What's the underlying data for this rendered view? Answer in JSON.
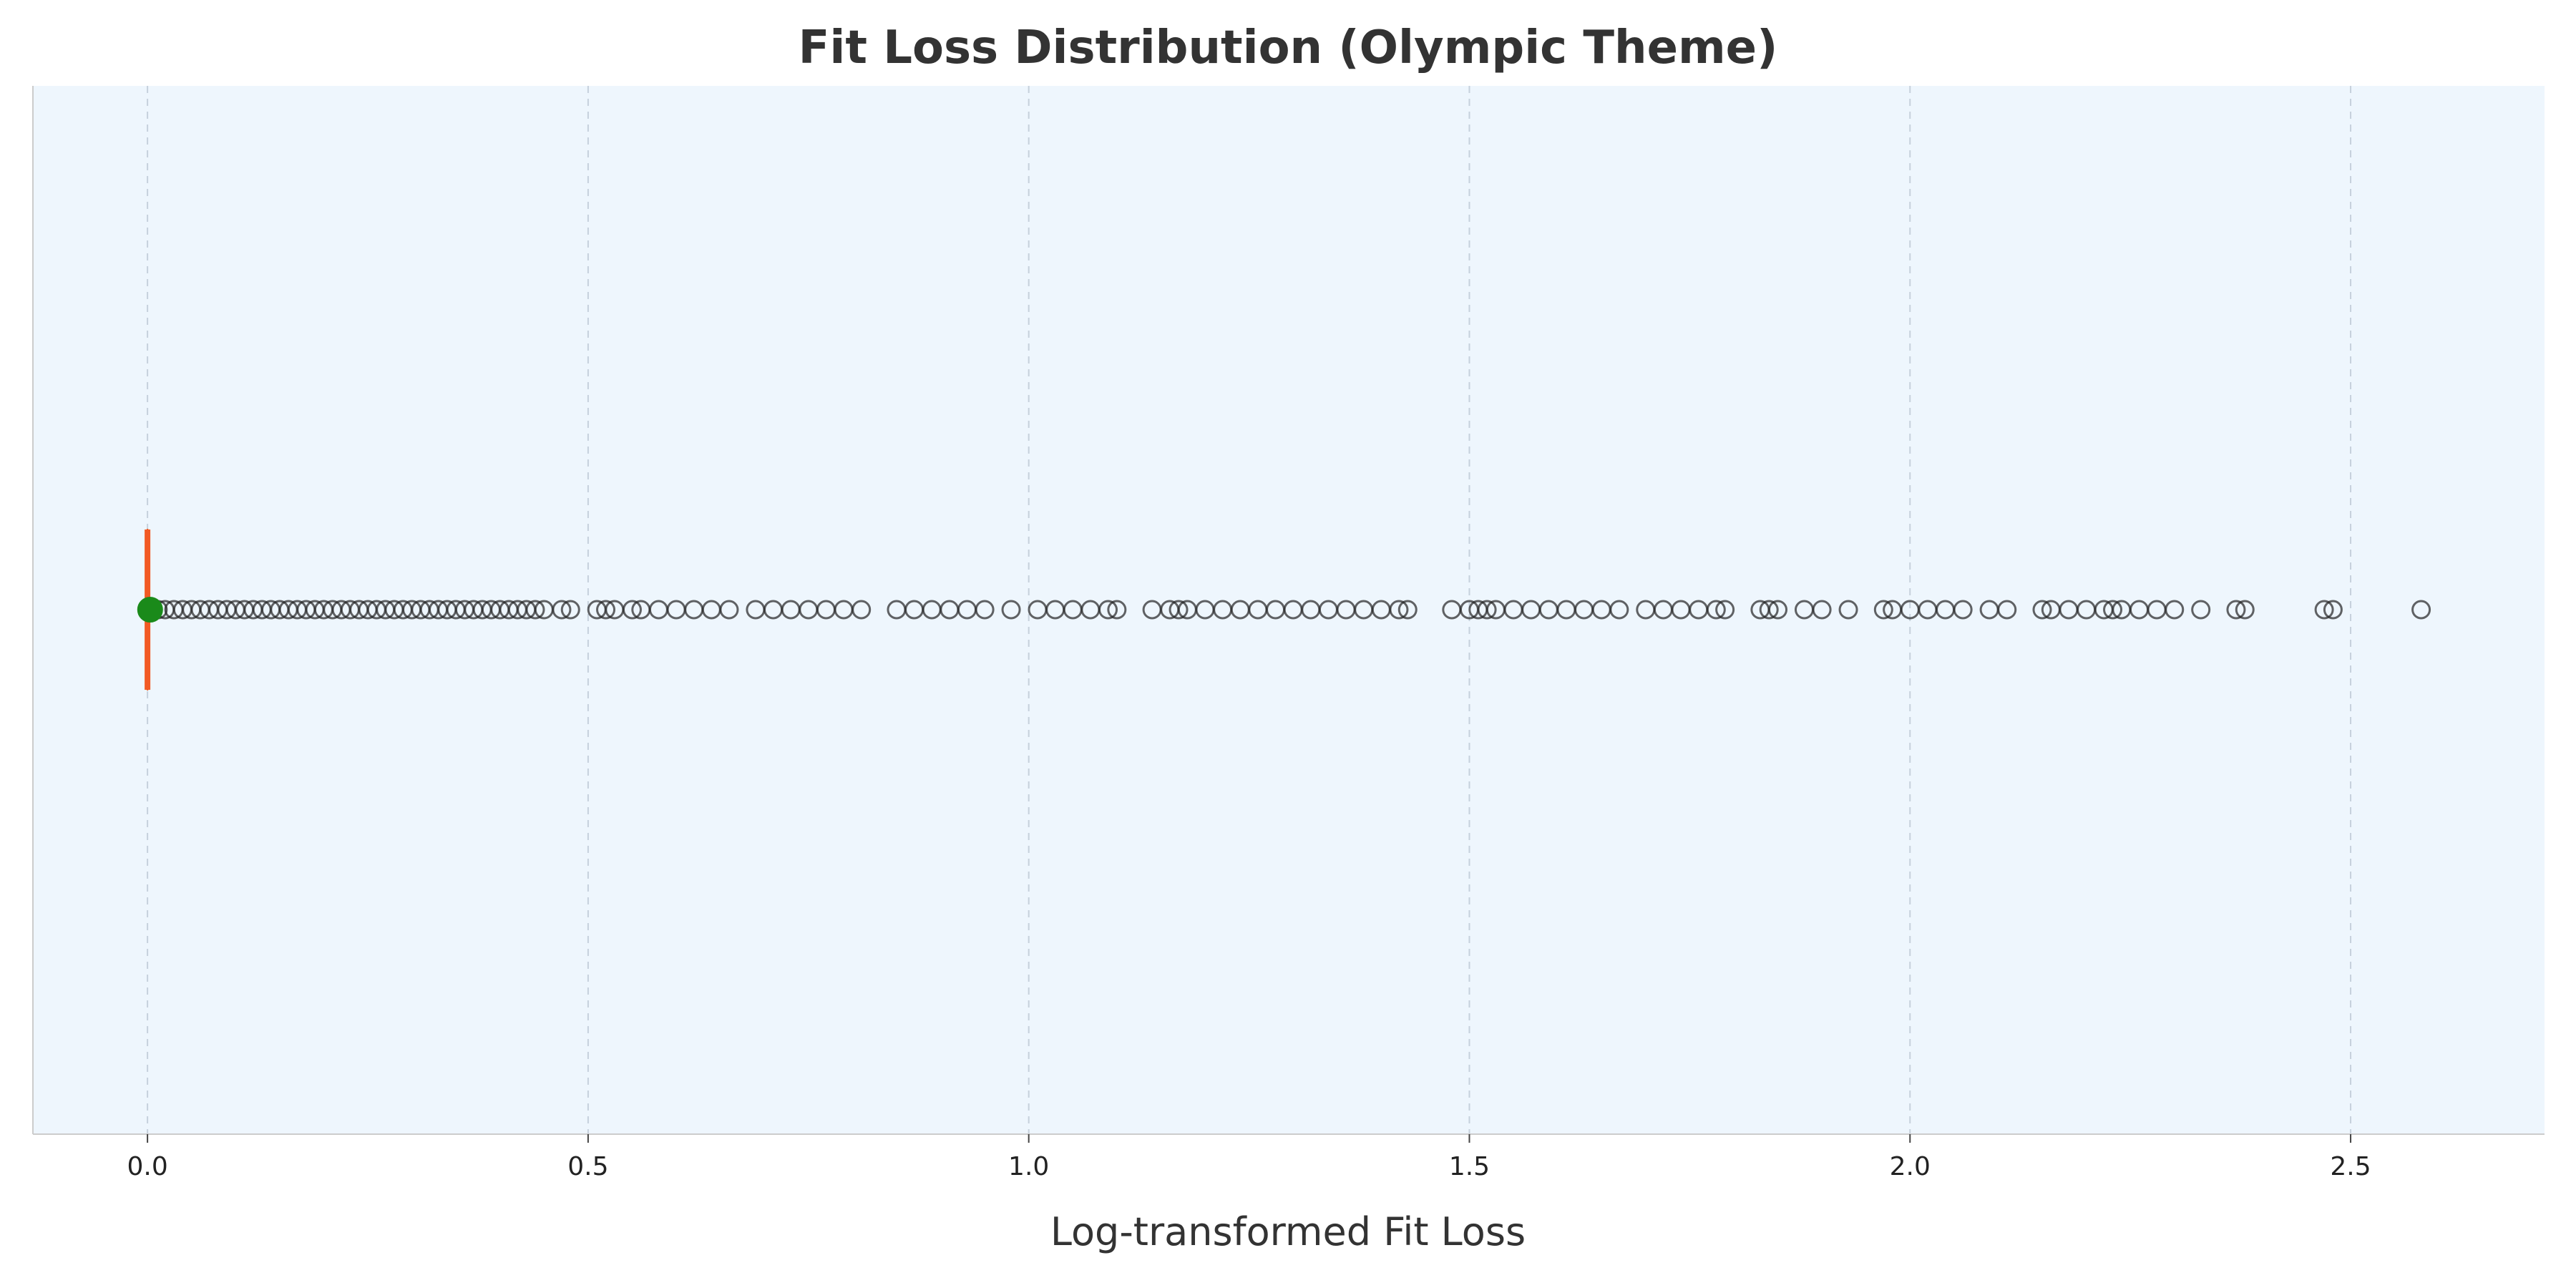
{
  "chart_data": {
    "type": "box",
    "title": "Fit Loss Distribution (Olympic Theme)",
    "xlabel": "Log-transformed Fit Loss",
    "ylabel": "",
    "xlim": [
      -0.13,
      2.72
    ],
    "x_ticks": [
      0.0,
      0.5,
      1.0,
      1.5,
      2.0,
      2.5
    ],
    "x_tick_labels": [
      "0.0",
      "0.5",
      "1.0",
      "1.5",
      "2.0",
      "2.5"
    ],
    "grid": {
      "x": true,
      "y": false,
      "style": "dashed"
    },
    "box": {
      "min": 0.0,
      "q1": 0.0,
      "median": 0.0,
      "q3": 0.0,
      "max": 0.0,
      "mean": 0.003
    },
    "outliers": [
      0.005,
      0.012,
      0.02,
      0.03,
      0.04,
      0.05,
      0.06,
      0.07,
      0.08,
      0.09,
      0.1,
      0.11,
      0.12,
      0.13,
      0.14,
      0.15,
      0.16,
      0.17,
      0.18,
      0.19,
      0.2,
      0.21,
      0.22,
      0.23,
      0.24,
      0.25,
      0.26,
      0.27,
      0.28,
      0.29,
      0.3,
      0.31,
      0.32,
      0.33,
      0.34,
      0.35,
      0.36,
      0.37,
      0.38,
      0.39,
      0.4,
      0.41,
      0.42,
      0.43,
      0.44,
      0.45,
      0.47,
      0.48,
      0.51,
      0.52,
      0.53,
      0.55,
      0.56,
      0.58,
      0.6,
      0.62,
      0.64,
      0.66,
      0.69,
      0.71,
      0.73,
      0.75,
      0.77,
      0.79,
      0.81,
      0.85,
      0.87,
      0.89,
      0.91,
      0.93,
      0.95,
      0.98,
      1.01,
      1.03,
      1.05,
      1.07,
      1.09,
      1.1,
      1.14,
      1.16,
      1.17,
      1.18,
      1.2,
      1.22,
      1.24,
      1.26,
      1.28,
      1.3,
      1.32,
      1.34,
      1.36,
      1.38,
      1.4,
      1.42,
      1.43,
      1.48,
      1.5,
      1.51,
      1.52,
      1.53,
      1.55,
      1.57,
      1.59,
      1.61,
      1.63,
      1.65,
      1.67,
      1.7,
      1.72,
      1.74,
      1.76,
      1.78,
      1.79,
      1.83,
      1.84,
      1.85,
      1.88,
      1.9,
      1.93,
      1.97,
      1.98,
      2.0,
      2.02,
      2.04,
      2.06,
      2.09,
      2.11,
      2.15,
      2.16,
      2.18,
      2.2,
      2.22,
      2.23,
      2.24,
      2.26,
      2.28,
      2.3,
      2.33,
      2.37,
      2.38,
      2.47,
      2.48,
      2.58
    ],
    "colors": {
      "plot_background": "#eef6fd",
      "median_line": "#f25a24",
      "mean_marker": "#1a8a1a",
      "outlier_edge": "#222222",
      "grid": "#c6d1dc",
      "spine": "#cccccc",
      "text": "#333333"
    }
  }
}
